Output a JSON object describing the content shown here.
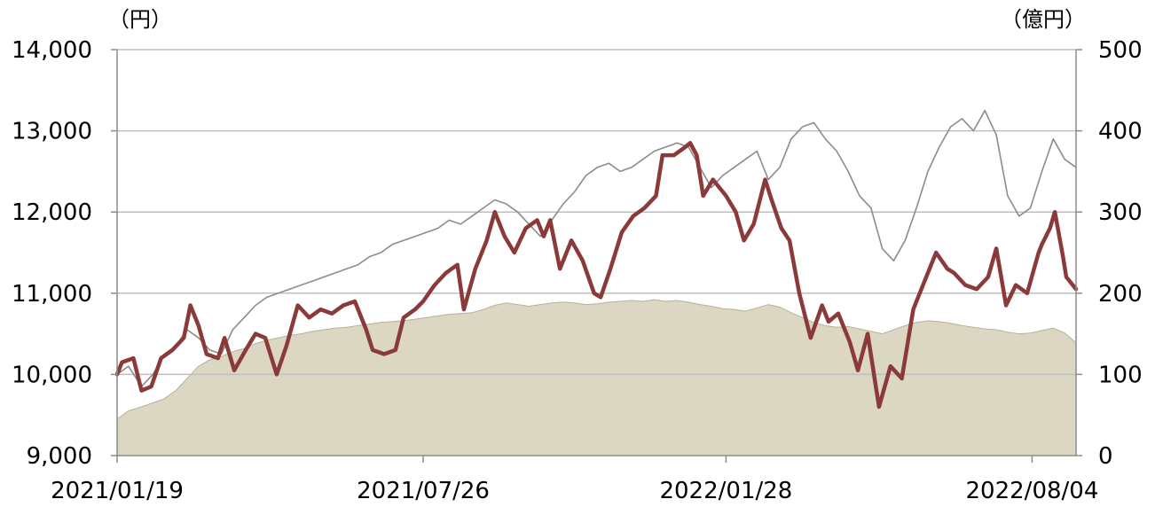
{
  "chart_data": {
    "type": "line",
    "left_unit": "（円）",
    "right_unit": "（億円）",
    "ylim_left": [
      9000,
      14000
    ],
    "ylim_right": [
      0,
      500
    ],
    "yticks_left": [
      "9,000",
      "10,000",
      "11,000",
      "12,000",
      "13,000",
      "14,000"
    ],
    "yticks_right": [
      "0",
      "100",
      "200",
      "300",
      "400",
      "500"
    ],
    "x_range": [
      "2021/01/19",
      "2022/08/31"
    ],
    "xticks": [
      {
        "date": "2021/01/19",
        "label": "2021/01/19"
      },
      {
        "date": "2021/07/26",
        "label": "2021/07/26"
      },
      {
        "date": "2022/01/28",
        "label": "2022/01/28"
      },
      {
        "date": "2022/08/04",
        "label": "2022/08/04"
      }
    ],
    "grid": true,
    "colors": {
      "nav_line": "#8b3a3a",
      "reference_line": "#8c8c8c",
      "net_assets_area": "#dcd7c3",
      "net_assets_edge": "#b8b197"
    },
    "series": [
      {
        "axis": "left",
        "style": "thick-line",
        "points": [
          [
            "2021/01/19",
            10000
          ],
          [
            "2021/01/22",
            10150
          ],
          [
            "2021/01/29",
            10200
          ],
          [
            "2021/02/03",
            9800
          ],
          [
            "2021/02/09",
            9850
          ],
          [
            "2021/02/15",
            10200
          ],
          [
            "2021/02/22",
            10300
          ],
          [
            "2021/03/01",
            10450
          ],
          [
            "2021/03/05",
            10850
          ],
          [
            "2021/03/10",
            10600
          ],
          [
            "2021/03/15",
            10250
          ],
          [
            "2021/03/22",
            10200
          ],
          [
            "2021/03/26",
            10450
          ],
          [
            "2021/04/01",
            10050
          ],
          [
            "2021/04/08",
            10300
          ],
          [
            "2021/04/14",
            10500
          ],
          [
            "2021/04/20",
            10450
          ],
          [
            "2021/04/27",
            10000
          ],
          [
            "2021/05/03",
            10350
          ],
          [
            "2021/05/10",
            10850
          ],
          [
            "2021/05/17",
            10700
          ],
          [
            "2021/05/24",
            10800
          ],
          [
            "2021/05/31",
            10750
          ],
          [
            "2021/06/07",
            10850
          ],
          [
            "2021/06/14",
            10900
          ],
          [
            "2021/06/21",
            10550
          ],
          [
            "2021/06/25",
            10300
          ],
          [
            "2021/07/02",
            10250
          ],
          [
            "2021/07/09",
            10300
          ],
          [
            "2021/07/14",
            10700
          ],
          [
            "2021/07/21",
            10800
          ],
          [
            "2021/07/26",
            10900
          ],
          [
            "2021/08/02",
            11100
          ],
          [
            "2021/08/09",
            11250
          ],
          [
            "2021/08/16",
            11350
          ],
          [
            "2021/08/20",
            10800
          ],
          [
            "2021/08/27",
            11300
          ],
          [
            "2021/09/03",
            11650
          ],
          [
            "2021/09/08",
            12000
          ],
          [
            "2021/09/14",
            11700
          ],
          [
            "2021/09/20",
            11500
          ],
          [
            "2021/09/27",
            11800
          ],
          [
            "2021/10/04",
            11900
          ],
          [
            "2021/10/08",
            11700
          ],
          [
            "2021/10/12",
            11900
          ],
          [
            "2021/10/18",
            11300
          ],
          [
            "2021/10/25",
            11650
          ],
          [
            "2021/11/01",
            11400
          ],
          [
            "2021/11/08",
            11000
          ],
          [
            "2021/11/12",
            10950
          ],
          [
            "2021/11/18",
            11300
          ],
          [
            "2021/11/25",
            11750
          ],
          [
            "2021/12/02",
            11950
          ],
          [
            "2021/12/09",
            12050
          ],
          [
            "2021/12/16",
            12200
          ],
          [
            "2021/12/20",
            12700
          ],
          [
            "2021/12/27",
            12700
          ],
          [
            "2022/01/03",
            12800
          ],
          [
            "2022/01/06",
            12850
          ],
          [
            "2022/01/10",
            12700
          ],
          [
            "2022/01/14",
            12200
          ],
          [
            "2022/01/20",
            12400
          ],
          [
            "2022/01/28",
            12200
          ],
          [
            "2022/02/03",
            12000
          ],
          [
            "2022/02/08",
            11650
          ],
          [
            "2022/02/14",
            11850
          ],
          [
            "2022/02/21",
            12400
          ],
          [
            "2022/02/25",
            12150
          ],
          [
            "2022/03/03",
            11800
          ],
          [
            "2022/03/08",
            11650
          ],
          [
            "2022/03/14",
            11000
          ],
          [
            "2022/03/21",
            10450
          ],
          [
            "2022/03/28",
            10850
          ],
          [
            "2022/04/01",
            10650
          ],
          [
            "2022/04/07",
            10750
          ],
          [
            "2022/04/14",
            10400
          ],
          [
            "2022/04/19",
            10050
          ],
          [
            "2022/04/25",
            10500
          ],
          [
            "2022/05/02",
            9600
          ],
          [
            "2022/05/09",
            10100
          ],
          [
            "2022/05/16",
            9950
          ],
          [
            "2022/05/23",
            10800
          ],
          [
            "2022/05/30",
            11150
          ],
          [
            "2022/06/06",
            11500
          ],
          [
            "2022/06/13",
            11300
          ],
          [
            "2022/06/17",
            11250
          ],
          [
            "2022/06/24",
            11100
          ],
          [
            "2022/07/01",
            11050
          ],
          [
            "2022/07/08",
            11200
          ],
          [
            "2022/07/13",
            11550
          ],
          [
            "2022/07/19",
            10850
          ],
          [
            "2022/07/25",
            11100
          ],
          [
            "2022/08/01",
            11000
          ],
          [
            "2022/08/08",
            11500
          ],
          [
            "2022/08/10",
            11600
          ],
          [
            "2022/08/15",
            11800
          ],
          [
            "2022/08/18",
            12000
          ],
          [
            "2022/08/23",
            11450
          ],
          [
            "2022/08/25",
            11200
          ],
          [
            "2022/08/31",
            11050
          ]
        ]
      },
      {
        "axis": "left",
        "style": "thin-line",
        "points": [
          [
            "2021/01/19",
            10000
          ],
          [
            "2021/01/26",
            10100
          ],
          [
            "2021/02/03",
            9850
          ],
          [
            "2021/02/10",
            10000
          ],
          [
            "2021/02/17",
            10250
          ],
          [
            "2021/02/24",
            10350
          ],
          [
            "2021/03/03",
            10550
          ],
          [
            "2021/03/10",
            10450
          ],
          [
            "2021/03/17",
            10300
          ],
          [
            "2021/03/24",
            10250
          ],
          [
            "2021/03/31",
            10550
          ],
          [
            "2021/04/07",
            10700
          ],
          [
            "2021/04/14",
            10850
          ],
          [
            "2021/04/21",
            10950
          ],
          [
            "2021/04/28",
            11000
          ],
          [
            "2021/05/05",
            11050
          ],
          [
            "2021/05/12",
            11100
          ],
          [
            "2021/05/19",
            11150
          ],
          [
            "2021/05/26",
            11200
          ],
          [
            "2021/06/02",
            11250
          ],
          [
            "2021/06/09",
            11300
          ],
          [
            "2021/06/16",
            11350
          ],
          [
            "2021/06/23",
            11450
          ],
          [
            "2021/06/30",
            11500
          ],
          [
            "2021/07/07",
            11600
          ],
          [
            "2021/07/14",
            11650
          ],
          [
            "2021/07/21",
            11700
          ],
          [
            "2021/07/28",
            11750
          ],
          [
            "2021/08/04",
            11800
          ],
          [
            "2021/08/11",
            11900
          ],
          [
            "2021/08/18",
            11850
          ],
          [
            "2021/08/25",
            11950
          ],
          [
            "2021/09/01",
            12050
          ],
          [
            "2021/09/08",
            12150
          ],
          [
            "2021/09/15",
            12100
          ],
          [
            "2021/09/22",
            12000
          ],
          [
            "2021/09/29",
            11850
          ],
          [
            "2021/10/06",
            11700
          ],
          [
            "2021/10/13",
            11900
          ],
          [
            "2021/10/20",
            12100
          ],
          [
            "2021/10/27",
            12250
          ],
          [
            "2021/11/03",
            12450
          ],
          [
            "2021/11/10",
            12550
          ],
          [
            "2021/11/17",
            12600
          ],
          [
            "2021/11/24",
            12500
          ],
          [
            "2021/12/01",
            12550
          ],
          [
            "2021/12/08",
            12650
          ],
          [
            "2021/12/15",
            12750
          ],
          [
            "2021/12/22",
            12800
          ],
          [
            "2021/12/29",
            12850
          ],
          [
            "2022/01/05",
            12800
          ],
          [
            "2022/01/12",
            12550
          ],
          [
            "2022/01/19",
            12300
          ],
          [
            "2022/01/26",
            12450
          ],
          [
            "2022/02/02",
            12550
          ],
          [
            "2022/02/09",
            12650
          ],
          [
            "2022/02/16",
            12750
          ],
          [
            "2022/02/23",
            12400
          ],
          [
            "2022/03/02",
            12550
          ],
          [
            "2022/03/09",
            12900
          ],
          [
            "2022/03/16",
            13050
          ],
          [
            "2022/03/23",
            13100
          ],
          [
            "2022/03/30",
            12900
          ],
          [
            "2022/04/06",
            12750
          ],
          [
            "2022/04/13",
            12500
          ],
          [
            "2022/04/20",
            12200
          ],
          [
            "2022/04/27",
            12050
          ],
          [
            "2022/05/04",
            11550
          ],
          [
            "2022/05/11",
            11400
          ],
          [
            "2022/05/18",
            11650
          ],
          [
            "2022/05/25",
            12050
          ],
          [
            "2022/06/01",
            12500
          ],
          [
            "2022/06/08",
            12800
          ],
          [
            "2022/06/15",
            13050
          ],
          [
            "2022/06/22",
            13150
          ],
          [
            "2022/06/29",
            13000
          ],
          [
            "2022/07/06",
            13250
          ],
          [
            "2022/07/13",
            12950
          ],
          [
            "2022/07/20",
            12200
          ],
          [
            "2022/07/27",
            11950
          ],
          [
            "2022/08/03",
            12050
          ],
          [
            "2022/08/10",
            12500
          ],
          [
            "2022/08/17",
            12900
          ],
          [
            "2022/08/24",
            12650
          ],
          [
            "2022/08/31",
            12550
          ]
        ]
      },
      {
        "axis": "right",
        "style": "area",
        "points": [
          [
            "2021/01/19",
            45
          ],
          [
            "2021/01/26",
            55
          ],
          [
            "2021/02/03",
            60
          ],
          [
            "2021/02/10",
            65
          ],
          [
            "2021/02/17",
            70
          ],
          [
            "2021/02/24",
            80
          ],
          [
            "2021/03/03",
            95
          ],
          [
            "2021/03/10",
            110
          ],
          [
            "2021/03/17",
            118
          ],
          [
            "2021/03/24",
            122
          ],
          [
            "2021/03/31",
            128
          ],
          [
            "2021/04/07",
            132
          ],
          [
            "2021/04/14",
            138
          ],
          [
            "2021/04/21",
            142
          ],
          [
            "2021/04/28",
            145
          ],
          [
            "2021/05/05",
            148
          ],
          [
            "2021/05/12",
            150
          ],
          [
            "2021/05/19",
            153
          ],
          [
            "2021/05/26",
            155
          ],
          [
            "2021/06/02",
            157
          ],
          [
            "2021/06/09",
            158
          ],
          [
            "2021/06/16",
            160
          ],
          [
            "2021/06/23",
            162
          ],
          [
            "2021/06/30",
            164
          ],
          [
            "2021/07/07",
            165
          ],
          [
            "2021/07/14",
            166
          ],
          [
            "2021/07/21",
            168
          ],
          [
            "2021/07/28",
            170
          ],
          [
            "2021/08/04",
            172
          ],
          [
            "2021/08/11",
            174
          ],
          [
            "2021/08/18",
            175
          ],
          [
            "2021/08/25",
            176
          ],
          [
            "2021/09/01",
            180
          ],
          [
            "2021/09/08",
            185
          ],
          [
            "2021/09/15",
            188
          ],
          [
            "2021/09/22",
            186
          ],
          [
            "2021/09/29",
            184
          ],
          [
            "2021/10/06",
            186
          ],
          [
            "2021/10/13",
            188
          ],
          [
            "2021/10/20",
            189
          ],
          [
            "2021/10/27",
            188
          ],
          [
            "2021/11/03",
            186
          ],
          [
            "2021/11/10",
            187
          ],
          [
            "2021/11/17",
            189
          ],
          [
            "2021/11/24",
            190
          ],
          [
            "2021/12/01",
            191
          ],
          [
            "2021/12/08",
            190
          ],
          [
            "2021/12/15",
            192
          ],
          [
            "2021/12/22",
            190
          ],
          [
            "2021/12/29",
            191
          ],
          [
            "2022/01/05",
            189
          ],
          [
            "2022/01/12",
            186
          ],
          [
            "2022/01/19",
            184
          ],
          [
            "2022/01/26",
            181
          ],
          [
            "2022/02/02",
            180
          ],
          [
            "2022/02/09",
            178
          ],
          [
            "2022/02/16",
            182
          ],
          [
            "2022/02/23",
            186
          ],
          [
            "2022/03/02",
            183
          ],
          [
            "2022/03/09",
            176
          ],
          [
            "2022/03/16",
            170
          ],
          [
            "2022/03/23",
            164
          ],
          [
            "2022/03/30",
            160
          ],
          [
            "2022/04/06",
            158
          ],
          [
            "2022/04/13",
            159
          ],
          [
            "2022/04/20",
            156
          ],
          [
            "2022/04/27",
            153
          ],
          [
            "2022/05/04",
            150
          ],
          [
            "2022/05/11",
            155
          ],
          [
            "2022/05/18",
            160
          ],
          [
            "2022/05/25",
            164
          ],
          [
            "2022/06/01",
            166
          ],
          [
            "2022/06/08",
            165
          ],
          [
            "2022/06/15",
            163
          ],
          [
            "2022/06/22",
            160
          ],
          [
            "2022/06/29",
            158
          ],
          [
            "2022/07/06",
            156
          ],
          [
            "2022/07/13",
            155
          ],
          [
            "2022/07/20",
            152
          ],
          [
            "2022/07/27",
            150
          ],
          [
            "2022/08/03",
            151
          ],
          [
            "2022/08/10",
            154
          ],
          [
            "2022/08/17",
            157
          ],
          [
            "2022/08/24",
            151
          ],
          [
            "2022/08/31",
            139
          ]
        ]
      }
    ]
  }
}
